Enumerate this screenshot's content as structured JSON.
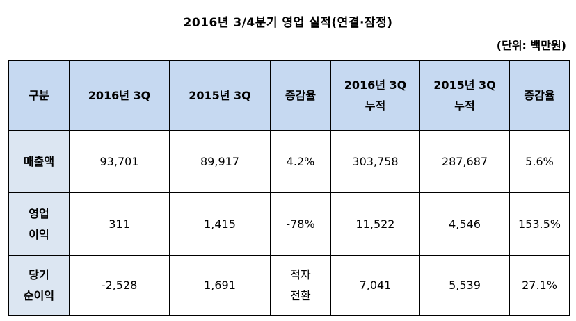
{
  "title": "2016년  3/4분기  영업  실적(연결·잠정)",
  "unit": "(단위:  백만원)",
  "table": {
    "headers": [
      {
        "lines": [
          "구분"
        ]
      },
      {
        "lines": [
          "2016년  3Q"
        ]
      },
      {
        "lines": [
          "2015년  3Q"
        ]
      },
      {
        "lines": [
          "증감율"
        ]
      },
      {
        "lines": [
          "2016년  3Q",
          "누적"
        ]
      },
      {
        "lines": [
          "2015년  3Q",
          "누적"
        ]
      },
      {
        "lines": [
          "증감율"
        ]
      }
    ],
    "rows": [
      {
        "label": [
          "매출액"
        ],
        "cells": [
          [
            "93,701"
          ],
          [
            "89,917"
          ],
          [
            "4.2%"
          ],
          [
            "303,758"
          ],
          [
            "287,687"
          ],
          [
            "5.6%"
          ]
        ]
      },
      {
        "label": [
          "영업",
          "이익"
        ],
        "cells": [
          [
            "311"
          ],
          [
            "1,415"
          ],
          [
            "-78%"
          ],
          [
            "11,522"
          ],
          [
            "4,546"
          ],
          [
            "153.5%"
          ]
        ]
      },
      {
        "label": [
          "당기",
          "순이익"
        ],
        "cells": [
          [
            "-2,528"
          ],
          [
            "1,691"
          ],
          [
            "적자",
            "전환"
          ],
          [
            "7,041"
          ],
          [
            "5,539"
          ],
          [
            "27.1%"
          ]
        ]
      }
    ]
  }
}
